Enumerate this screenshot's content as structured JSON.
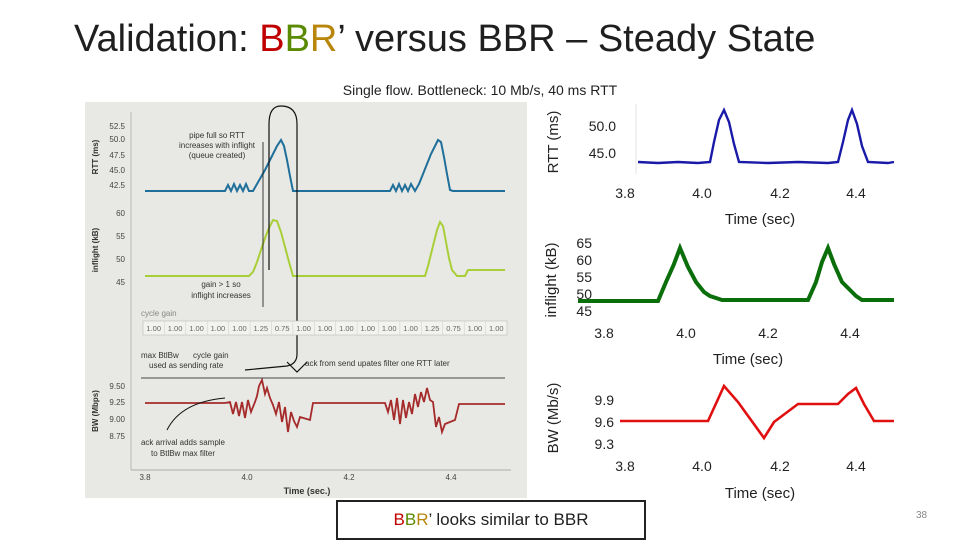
{
  "title": {
    "prefix": "Validation: ",
    "b1": "B",
    "b2": "B",
    "b3": "R",
    "rest": "’ versus BBR – Steady State"
  },
  "subtitle": "Single flow.  Bottleneck: 10 Mb/s, 40 ms RTT",
  "callout": {
    "b1": "B",
    "b2": "B",
    "b3": "R",
    "rest": "’ looks similar to BBR"
  },
  "slide_number": "38",
  "colors": {
    "title_b1": "#c00000",
    "title_b2": "#5a8a00",
    "title_b3": "#b8860b",
    "rtt_blue": "#1f6f9a",
    "inflight_green": "#a9cf38",
    "bw_red": "#a52a2a",
    "right_blue": "#1a1aa8",
    "right_green": "#0a6e0a",
    "right_red": "#e01010"
  },
  "left_chart": {
    "panels": [
      {
        "ylabel": "RTT (ms)",
        "ticks": [
          "52.5",
          "50.0",
          "47.5",
          "45.0",
          "42.5"
        ]
      },
      {
        "ylabel": "inflight (kB)",
        "ticks": [
          "60",
          "55",
          "50",
          "45"
        ]
      },
      {
        "ylabel": "BW (Mbps)",
        "ticks": [
          "9.50",
          "9.25",
          "9.00",
          "8.75"
        ]
      }
    ],
    "xticks": [
      "3.8",
      "4.0",
      "4.2",
      "4.4"
    ],
    "xlabel": "Time (sec.)",
    "cycle_gain_label": "cycle gain",
    "cycle_gains": [
      "1.00",
      "1.00",
      "1.00",
      "1.00",
      "1.00",
      "1.25",
      "0.75",
      "1.00",
      "1.00",
      "1.00",
      "1.00",
      "1.00",
      "1.00",
      "1.25",
      "0.75",
      "1.00",
      "1.00"
    ],
    "annotations": {
      "pipe_full": [
        "pipe full so RTT",
        "increases with inflight",
        "(queue created)"
      ],
      "gain_gt1": [
        "gain > 1 so",
        "inflight increases"
      ],
      "maxbw": [
        "max BtlBw",
        "cycle gain",
        "used as sending rate"
      ],
      "ack_filter": "ack from send upates filter one RTT later",
      "ack_arrival": [
        "ack arrival adds sample",
        "to BtlBw max filter"
      ]
    }
  },
  "right_chart": {
    "panels": [
      {
        "ylabel": "RTT (ms)",
        "ticks": [
          "50.0",
          "45.0"
        ]
      },
      {
        "ylabel": "inflight (kB)",
        "ticks": [
          "65",
          "60",
          "55",
          "50",
          "45"
        ]
      },
      {
        "ylabel": "BW (Mb/s)",
        "ticks": [
          "9.9",
          "9.6",
          "9.3"
        ]
      }
    ],
    "xticks": [
      "3.8",
      "4.0",
      "4.2",
      "4.4"
    ],
    "xlabel": "Time (sec)"
  }
}
